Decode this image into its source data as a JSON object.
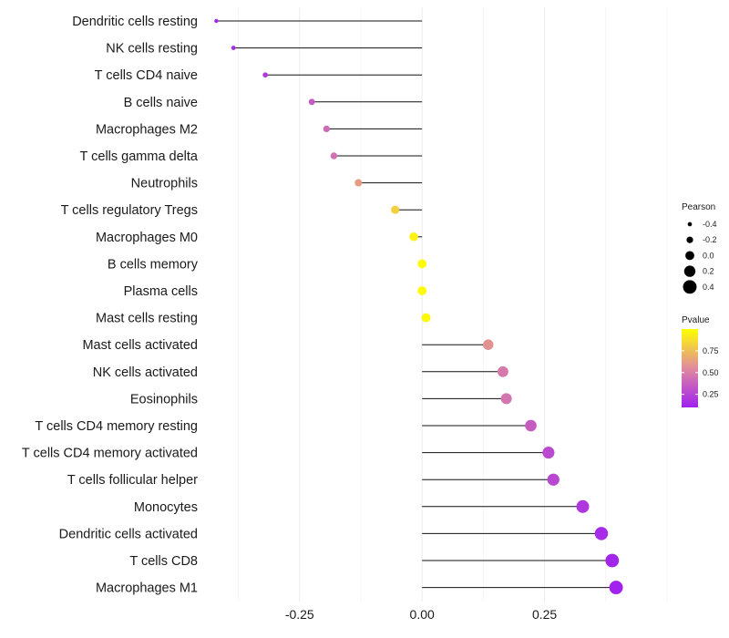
{
  "chart_data": {
    "type": "lollipop",
    "title": "",
    "xlabel": "",
    "ylabel": "",
    "xlim": [
      -0.43,
      0.5
    ],
    "xticks": [
      {
        "value": -0.25,
        "label": "-0.25"
      },
      {
        "value": 0.0,
        "label": "0.00"
      },
      {
        "value": 0.25,
        "label": "0.25"
      }
    ],
    "grid": true,
    "points": [
      {
        "category": "Dendritic cells resting",
        "pearson": -0.42,
        "pvalue": 0.12
      },
      {
        "category": "NK cells resting",
        "pearson": -0.385,
        "pvalue": 0.15
      },
      {
        "category": "T cells CD4 naive",
        "pearson": -0.32,
        "pvalue": 0.22
      },
      {
        "category": "B cells naive",
        "pearson": -0.225,
        "pvalue": 0.35
      },
      {
        "category": "Macrophages M2",
        "pearson": -0.195,
        "pvalue": 0.42
      },
      {
        "category": "T cells gamma delta",
        "pearson": -0.18,
        "pvalue": 0.45
      },
      {
        "category": "Neutrophils",
        "pearson": -0.13,
        "pvalue": 0.62
      },
      {
        "category": "T cells regulatory  Tregs ",
        "pearson": -0.055,
        "pvalue": 0.82
      },
      {
        "category": "Macrophages M0",
        "pearson": -0.017,
        "pvalue": 0.95
      },
      {
        "category": "B cells memory",
        "pearson": 0.0,
        "pvalue": 0.99
      },
      {
        "category": "Plasma cells",
        "pearson": 0.0,
        "pvalue": 0.99
      },
      {
        "category": "Mast cells resting",
        "pearson": 0.008,
        "pvalue": 0.97
      },
      {
        "category": "Mast cells activated",
        "pearson": 0.135,
        "pvalue": 0.58
      },
      {
        "category": "NK cells activated",
        "pearson": 0.165,
        "pvalue": 0.48
      },
      {
        "category": "Eosinophils",
        "pearson": 0.172,
        "pvalue": 0.46
      },
      {
        "category": "T cells CD4 memory resting",
        "pearson": 0.222,
        "pvalue": 0.36
      },
      {
        "category": "T cells CD4 memory activated",
        "pearson": 0.258,
        "pvalue": 0.28
      },
      {
        "category": "T cells follicular helper",
        "pearson": 0.268,
        "pvalue": 0.27
      },
      {
        "category": "Monocytes",
        "pearson": 0.328,
        "pvalue": 0.2
      },
      {
        "category": "Dendritic cells activated",
        "pearson": 0.366,
        "pvalue": 0.15
      },
      {
        "category": "T cells CD8",
        "pearson": 0.388,
        "pvalue": 0.12
      },
      {
        "category": "Macrophages M1",
        "pearson": 0.396,
        "pvalue": 0.11
      }
    ],
    "legend": {
      "placement": "right",
      "size_title": "Pearson",
      "size_entries": [
        {
          "value": -0.4,
          "label": "-0.4"
        },
        {
          "value": -0.2,
          "label": "-0.2"
        },
        {
          "value": 0.0,
          "label": "0.0"
        },
        {
          "value": 0.2,
          "label": "0.2"
        },
        {
          "value": 0.4,
          "label": "0.4"
        }
      ],
      "color_title": "Pvalue",
      "color_ticks": [
        {
          "value": 0.75,
          "label": "0.75"
        },
        {
          "value": 0.5,
          "label": "0.50"
        },
        {
          "value": 0.25,
          "label": "0.25"
        }
      ],
      "color_range": [
        0.1,
        1.0
      ],
      "color_low": "#a020f0",
      "color_mid": "#e08a9e",
      "color_high": "#ffff00"
    }
  }
}
